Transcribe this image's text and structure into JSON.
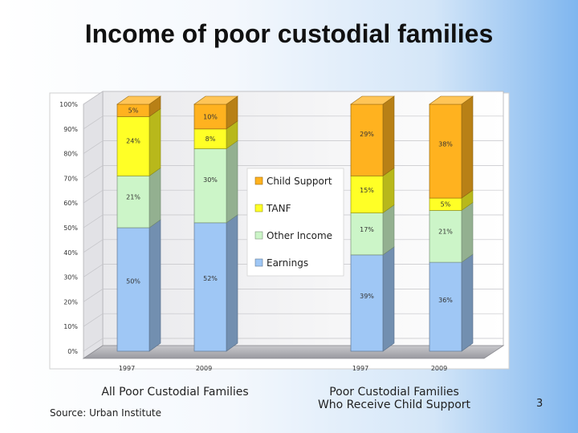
{
  "slide": {
    "title": "Income of poor custodial families",
    "source": "Source: Urban Institute",
    "page_number": "3",
    "group_captions": [
      "All Poor Custodial Families",
      "Poor Custodial Families Who Receive Child Support"
    ]
  },
  "chart_data": {
    "type": "bar",
    "stacked": true,
    "percent_stacked": true,
    "categories": [
      "1997",
      "2009",
      "1997",
      "2009"
    ],
    "series": [
      {
        "name": "Earnings",
        "values": [
          50,
          52,
          39,
          36
        ],
        "labels": [
          "50%",
          "52%",
          "39%",
          "36%"
        ],
        "color": "#9fc7f5"
      },
      {
        "name": "Other Income",
        "values": [
          21,
          30,
          17,
          21
        ],
        "labels": [
          "21%",
          "30%",
          "17%",
          "21%"
        ],
        "color": "#ccf5c8"
      },
      {
        "name": "TANF",
        "values": [
          24,
          8,
          15,
          5
        ],
        "labels": [
          "24%",
          "8%",
          "15%",
          "5%"
        ],
        "color": "#ffff26"
      },
      {
        "name": "Child Support",
        "values": [
          5,
          10,
          29,
          38
        ],
        "labels": [
          "5%",
          "10%",
          "29%",
          "38%"
        ],
        "color": "#ffb21f"
      }
    ],
    "y_ticks": [
      "0%",
      "10%",
      "20%",
      "30%",
      "40%",
      "50%",
      "60%",
      "70%",
      "80%",
      "90%",
      "100%"
    ],
    "ylim": [
      0,
      100
    ],
    "legend_position": "center",
    "legend_order": [
      "Child Support",
      "TANF",
      "Other Income",
      "Earnings"
    ],
    "style": "3d"
  }
}
